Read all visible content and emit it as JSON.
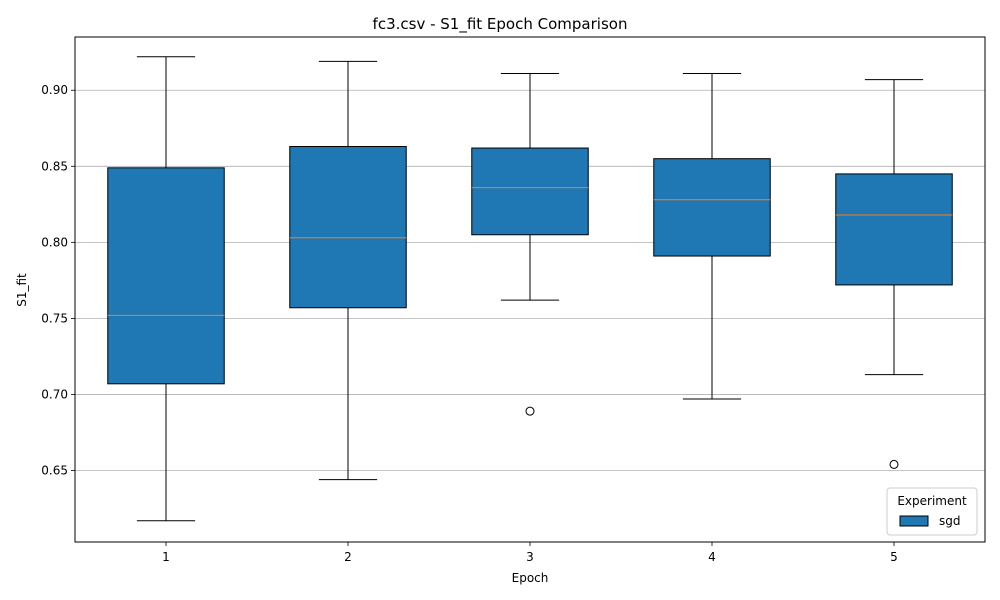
{
  "chart_data": {
    "type": "boxplot",
    "title": "fc3.csv - S1_fit Epoch Comparison",
    "xlabel": "Epoch",
    "ylabel": "S1_fit",
    "categories": [
      "1",
      "2",
      "3",
      "4",
      "5"
    ],
    "ylim": [
      0.603,
      0.935
    ],
    "yticks": [
      0.65,
      0.7,
      0.75,
      0.8,
      0.85,
      0.9
    ],
    "ytick_labels": [
      "0.65",
      "0.70",
      "0.75",
      "0.80",
      "0.85",
      "0.90"
    ],
    "grid": "y-major",
    "legend": {
      "title": "Experiment",
      "position": "bottom-right",
      "entries": [
        "sgd"
      ]
    },
    "colors": {
      "box_fill": "#1f77b4",
      "median": "#ff7f0e",
      "grid": "#b0b0b0",
      "edge": "#000000"
    },
    "series": [
      {
        "name": "sgd",
        "boxes": [
          {
            "category": "1",
            "whislo": 0.617,
            "q1": 0.707,
            "median": 0.752,
            "q3": 0.849,
            "whishi": 0.922,
            "fliers": []
          },
          {
            "category": "2",
            "whislo": 0.644,
            "q1": 0.757,
            "median": 0.803,
            "q3": 0.863,
            "whishi": 0.919,
            "fliers": []
          },
          {
            "category": "3",
            "whislo": 0.762,
            "q1": 0.805,
            "median": 0.836,
            "q3": 0.862,
            "whishi": 0.911,
            "fliers": [
              0.689
            ]
          },
          {
            "category": "4",
            "whislo": 0.697,
            "q1": 0.791,
            "median": 0.828,
            "q3": 0.855,
            "whishi": 0.911,
            "fliers": []
          },
          {
            "category": "5",
            "whislo": 0.713,
            "q1": 0.772,
            "median": 0.818,
            "q3": 0.845,
            "whishi": 0.907,
            "fliers": [
              0.654
            ]
          }
        ]
      }
    ]
  }
}
